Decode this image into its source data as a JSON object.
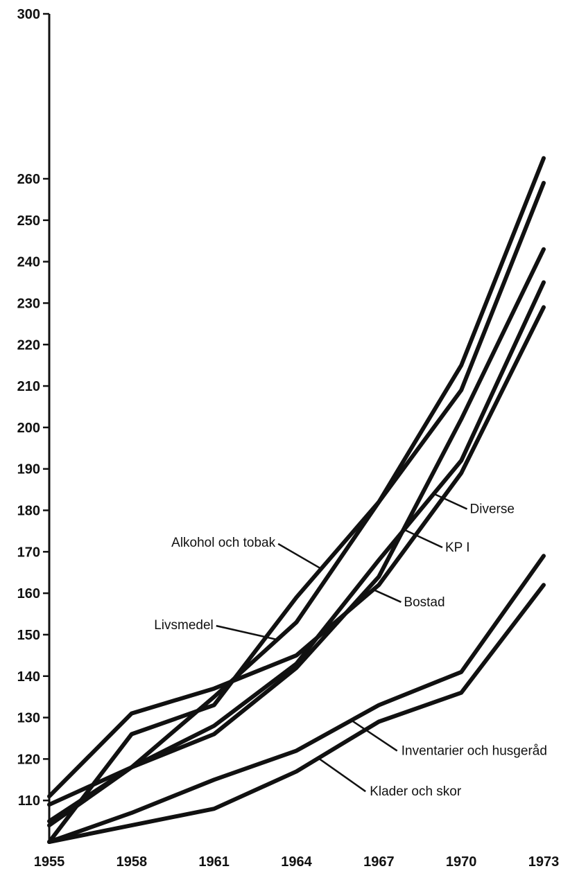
{
  "chart_data": {
    "type": "line",
    "title": "",
    "xlabel": "",
    "ylabel": "",
    "x": [
      1955,
      1958,
      1961,
      1964,
      1967,
      1970,
      1973
    ],
    "x_tick_labels": [
      "1955",
      "1958",
      "1961",
      "1964",
      "1967",
      "1970",
      "1973"
    ],
    "y_ticks": [
      110,
      120,
      130,
      140,
      150,
      160,
      170,
      180,
      190,
      200,
      210,
      220,
      230,
      240,
      250,
      260,
      300
    ],
    "y_tick_labels": [
      "110",
      "120",
      "130",
      "140",
      "150",
      "160",
      "170",
      "180",
      "190",
      "200",
      "210",
      "220",
      "230",
      "240",
      "250",
      "260",
      "300"
    ],
    "y_axis_break": [
      260,
      300
    ],
    "ylim": [
      100,
      300
    ],
    "grid": false,
    "legend": "inline annotations",
    "series": [
      {
        "name": "Alkohol och tobak",
        "values": [
          100,
          126,
          133,
          159,
          182,
          215,
          265
        ]
      },
      {
        "name": "Livsmedel",
        "values": [
          105,
          118,
          135,
          153,
          182,
          209,
          259
        ]
      },
      {
        "name": "Diverse",
        "values": [
          109,
          118,
          128,
          143,
          168,
          192,
          235
        ]
      },
      {
        "name": "KPI",
        "values": [
          104,
          118,
          126,
          142,
          164,
          202,
          243
        ]
      },
      {
        "name": "Bostad",
        "values": [
          111,
          131,
          137,
          145,
          162,
          189,
          229
        ]
      },
      {
        "name": "Inventarier och husgeråd",
        "values": [
          100,
          107,
          115,
          122,
          133,
          141,
          169
        ]
      },
      {
        "name": "Kläder och skor",
        "values": [
          100,
          104,
          108,
          117,
          129,
          136,
          162
        ]
      }
    ],
    "annotations": [
      {
        "text": "Alkohol och tobak",
        "series": "Alkohol och tobak",
        "at_x": 1964.9
      },
      {
        "text": "Livsmedel",
        "series": "Livsmedel",
        "at_x": 1963.3
      },
      {
        "text": "Diverse",
        "series": "Diverse",
        "at_x": 1969.0
      },
      {
        "text": "KP I",
        "series": "KPI",
        "at_x": 1967.9
      },
      {
        "text": "Bostad",
        "series": "Bostad",
        "at_x": 1966.8
      },
      {
        "text": "Inventarier och husgeråd",
        "series": "Inventarier och husgeråd",
        "at_x": 1966.0
      },
      {
        "text": "Klader och skor",
        "series": "Kläder och skor",
        "at_x": 1964.8
      }
    ]
  }
}
